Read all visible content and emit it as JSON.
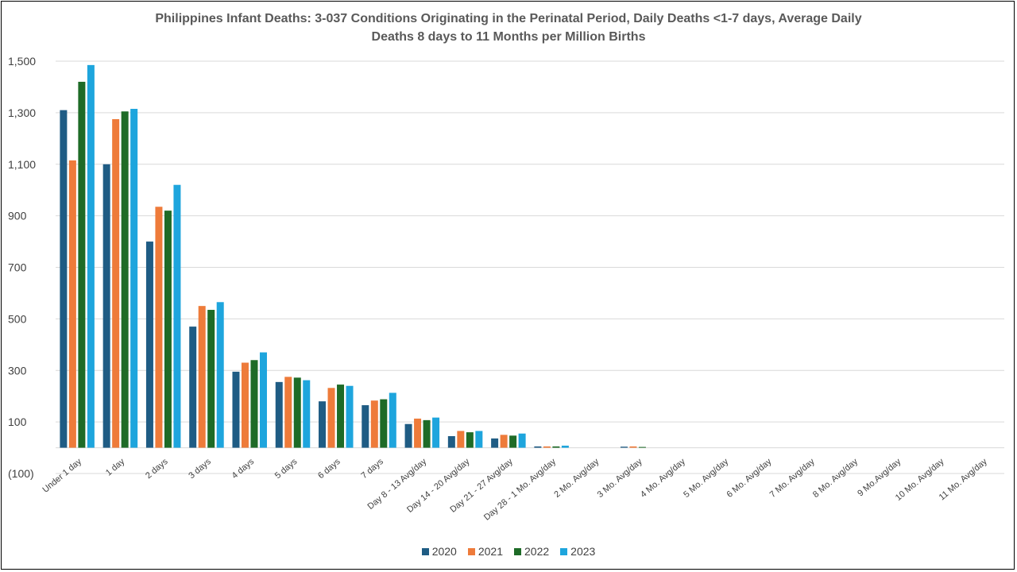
{
  "chart_data": {
    "type": "bar",
    "title_line1": "Philippines Infant Deaths: 3-037 Conditions Originating in the Perinatal Period, Daily Deaths <1-7 days, Average Daily",
    "title_line2": "Deaths 8 days to 11 Months per Million Births",
    "categories": [
      "Under 1 day",
      "1 day",
      "2 days",
      "3 days",
      "4 days",
      "5 days",
      "6 days",
      "7 days",
      "Day 8 - 13 Avg/day",
      "Day 14 - 20 Avg/day",
      "Day 21 - 27 Avg/day",
      "Day 28 - 1 Mo. Avg/day",
      "2 Mo. Avg/day",
      "3 Mo. Avg/day",
      "4 Mo. Avg/day",
      "5 Mo. Avg/day",
      "6 Mo. Avg/day",
      "7 Mo. Avg/day",
      "8 Mo. Avg/day",
      "9 Mo.Avg/day",
      "10 Mo. Avg/day",
      "11 Mo. Avg/day"
    ],
    "series": [
      {
        "name": "2020",
        "color": "#1f5c84",
        "values": [
          1310,
          1100,
          800,
          470,
          295,
          255,
          180,
          165,
          92,
          45,
          36,
          5,
          0,
          4,
          0,
          0,
          0,
          0,
          0,
          0,
          0,
          0
        ]
      },
      {
        "name": "2021",
        "color": "#ee7b3a",
        "values": [
          1115,
          1275,
          935,
          550,
          330,
          275,
          232,
          183,
          113,
          65,
          50,
          5,
          0,
          5,
          0,
          0,
          0,
          0,
          0,
          0,
          0,
          0
        ]
      },
      {
        "name": "2022",
        "color": "#1e6b27",
        "values": [
          1420,
          1305,
          920,
          535,
          340,
          272,
          245,
          188,
          107,
          60,
          47,
          5,
          0,
          3,
          0,
          0,
          0,
          0,
          0,
          0,
          0,
          0
        ]
      },
      {
        "name": "2023",
        "color": "#1ea5dd",
        "values": [
          1485,
          1315,
          1020,
          565,
          370,
          262,
          240,
          213,
          117,
          65,
          55,
          8,
          0,
          0,
          0,
          0,
          0,
          0,
          0,
          0,
          0,
          0
        ]
      }
    ],
    "yticks": [
      -100,
      100,
      300,
      500,
      700,
      900,
      1100,
      1300,
      1500
    ],
    "ytick_labels": [
      "(100)",
      "100",
      "300",
      "500",
      "700",
      "900",
      "1,100",
      "1,300",
      "1,500"
    ],
    "ylim": [
      -100,
      1500
    ],
    "grid": true,
    "legend_position": "bottom"
  }
}
